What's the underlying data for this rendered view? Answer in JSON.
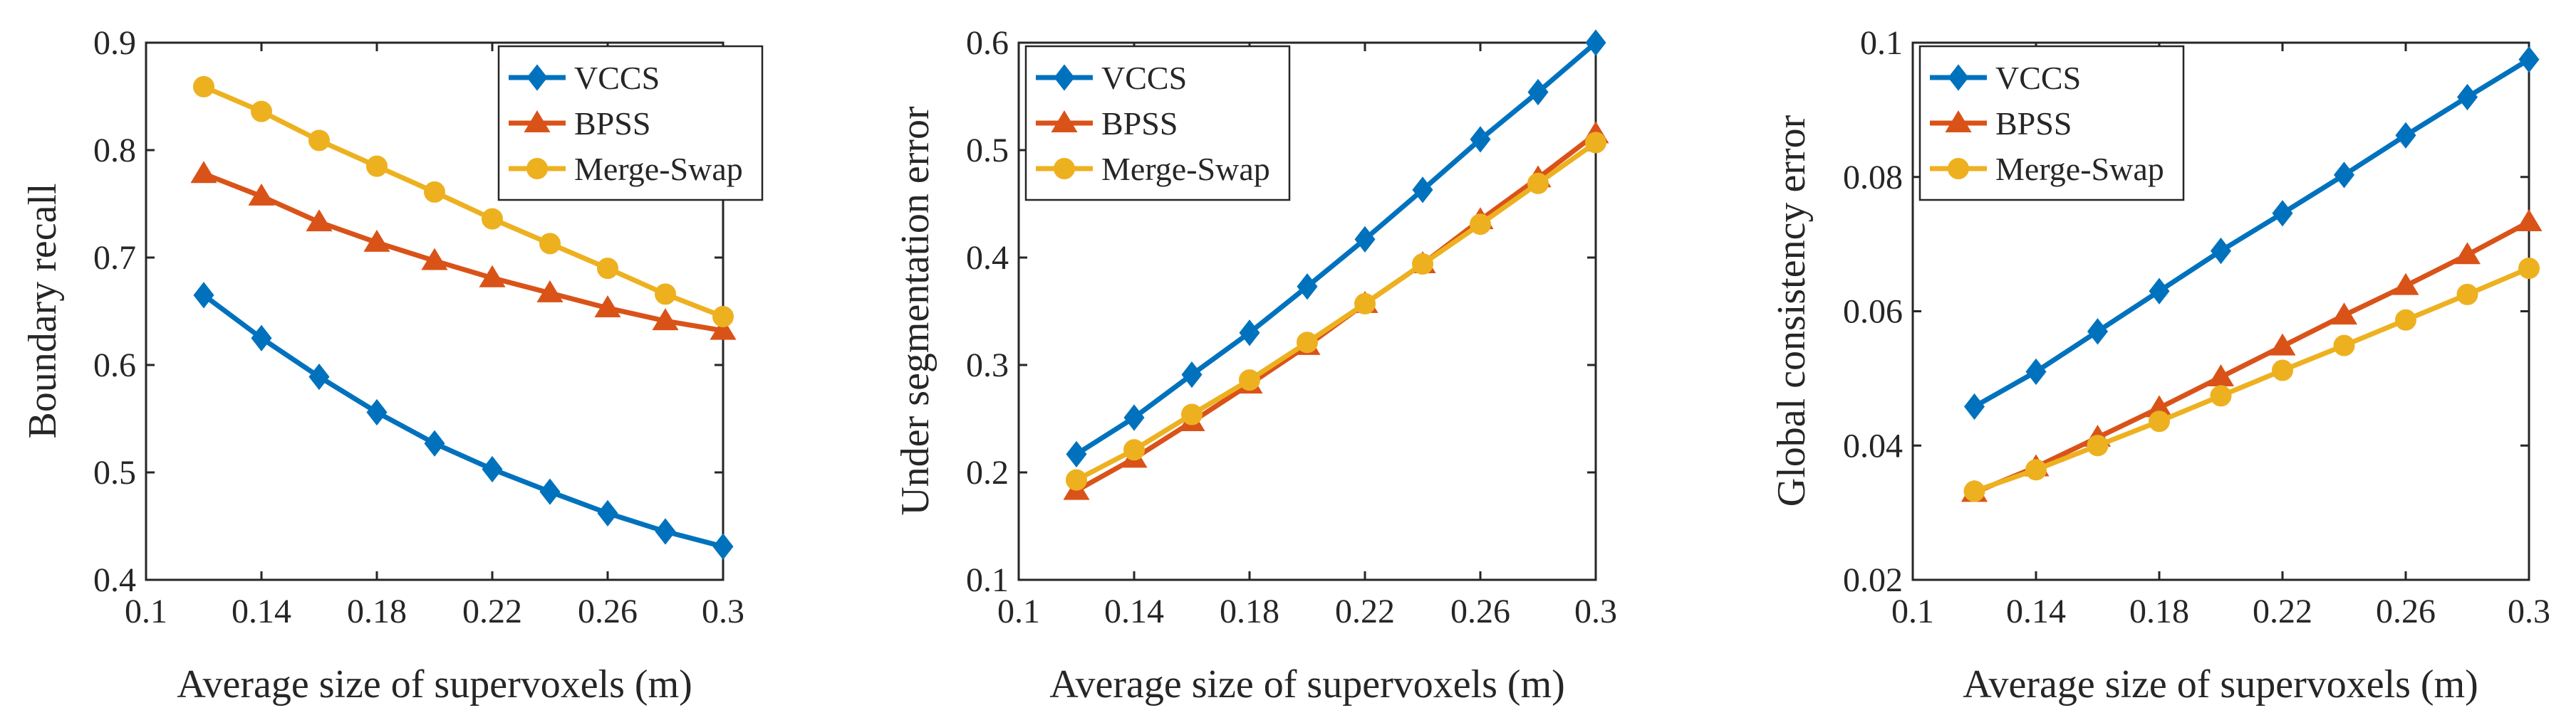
{
  "figure": {
    "colors": {
      "axis": "#262626",
      "background": "#ffffff",
      "vccs": "#0072BD",
      "bpss": "#D95319",
      "merge_swap": "#EDB120"
    }
  },
  "chart_data": [
    {
      "type": "line",
      "title": "",
      "xlabel": "Average size of supervoxels (m)",
      "ylabel": "Boundary recall",
      "xlim": [
        0.1,
        0.3
      ],
      "ylim": [
        0.4,
        0.9
      ],
      "xticks": [
        0.1,
        0.14,
        0.18,
        0.22,
        0.26,
        0.3
      ],
      "xtick_labels": [
        "0.1",
        "0.14",
        "0.18",
        "0.22",
        "0.26",
        "0.3"
      ],
      "yticks": [
        0.4,
        0.5,
        0.6,
        0.7,
        0.8,
        0.9
      ],
      "ytick_labels": [
        "0.4",
        "0.5",
        "0.6",
        "0.7",
        "0.8",
        "0.9"
      ],
      "legend_position": "top-right",
      "x": [
        0.12,
        0.14,
        0.16,
        0.18,
        0.2,
        0.22,
        0.24,
        0.26,
        0.28,
        0.3
      ],
      "series": [
        {
          "name": "VCCS",
          "marker": "diamond",
          "color": "#0072BD",
          "values": [
            0.665,
            0.625,
            0.589,
            0.556,
            0.527,
            0.503,
            0.482,
            0.462,
            0.445,
            0.431
          ]
        },
        {
          "name": "BPSS",
          "marker": "triangle",
          "color": "#D95319",
          "values": [
            0.778,
            0.757,
            0.733,
            0.714,
            0.697,
            0.681,
            0.667,
            0.653,
            0.641,
            0.632
          ]
        },
        {
          "name": "Merge-Swap",
          "marker": "circle",
          "color": "#EDB120",
          "values": [
            0.859,
            0.836,
            0.809,
            0.785,
            0.761,
            0.736,
            0.713,
            0.69,
            0.666,
            0.645
          ]
        }
      ]
    },
    {
      "type": "line",
      "title": "",
      "xlabel": "Average size of supervoxels (m)",
      "ylabel": "Under segmentation error",
      "xlim": [
        0.1,
        0.3
      ],
      "ylim": [
        0.1,
        0.6
      ],
      "xticks": [
        0.1,
        0.14,
        0.18,
        0.22,
        0.26,
        0.3
      ],
      "xtick_labels": [
        "0.1",
        "0.14",
        "0.18",
        "0.22",
        "0.26",
        "0.3"
      ],
      "yticks": [
        0.1,
        0.2,
        0.3,
        0.4,
        0.5,
        0.6
      ],
      "ytick_labels": [
        "0.1",
        "0.2",
        "0.3",
        "0.4",
        "0.5",
        "0.6"
      ],
      "legend_position": "top-left",
      "x": [
        0.12,
        0.14,
        0.16,
        0.18,
        0.2,
        0.22,
        0.24,
        0.26,
        0.28,
        0.3
      ],
      "series": [
        {
          "name": "VCCS",
          "marker": "diamond",
          "color": "#0072BD",
          "values": [
            0.217,
            0.251,
            0.291,
            0.33,
            0.373,
            0.417,
            0.463,
            0.51,
            0.554,
            0.6
          ]
        },
        {
          "name": "BPSS",
          "marker": "triangle",
          "color": "#D95319",
          "values": [
            0.183,
            0.213,
            0.247,
            0.282,
            0.318,
            0.357,
            0.394,
            0.435,
            0.474,
            0.515
          ]
        },
        {
          "name": "Merge-Swap",
          "marker": "circle",
          "color": "#EDB120",
          "values": [
            0.193,
            0.221,
            0.254,
            0.286,
            0.321,
            0.357,
            0.394,
            0.431,
            0.469,
            0.507
          ]
        }
      ]
    },
    {
      "type": "line",
      "title": "",
      "xlabel": "Average size of supervoxels (m)",
      "ylabel": "Global consistency error",
      "xlim": [
        0.1,
        0.3
      ],
      "ylim": [
        0.02,
        0.1
      ],
      "xticks": [
        0.1,
        0.14,
        0.18,
        0.22,
        0.26,
        0.3
      ],
      "xtick_labels": [
        "0.1",
        "0.14",
        "0.18",
        "0.22",
        "0.26",
        "0.3"
      ],
      "yticks": [
        0.02,
        0.04,
        0.06,
        0.08,
        0.1
      ],
      "ytick_labels": [
        "0.02",
        "0.04",
        "0.06",
        "0.08",
        "0.1"
      ],
      "legend_position": "top-left",
      "x": [
        0.12,
        0.14,
        0.16,
        0.18,
        0.2,
        0.22,
        0.24,
        0.26,
        0.28,
        0.3
      ],
      "series": [
        {
          "name": "VCCS",
          "marker": "diamond",
          "color": "#0072BD",
          "values": [
            0.0458,
            0.051,
            0.057,
            0.063,
            0.069,
            0.0746,
            0.0803,
            0.0862,
            0.0919,
            0.0975
          ]
        },
        {
          "name": "BPSS",
          "marker": "triangle",
          "color": "#D95319",
          "values": [
            0.033,
            0.0368,
            0.0412,
            0.0456,
            0.0502,
            0.0548,
            0.0594,
            0.0638,
            0.0684,
            0.0733
          ]
        },
        {
          "name": "Merge-Swap",
          "marker": "circle",
          "color": "#EDB120",
          "values": [
            0.0332,
            0.0364,
            0.04,
            0.0436,
            0.0474,
            0.0512,
            0.0549,
            0.0587,
            0.0625,
            0.0664
          ]
        }
      ]
    }
  ]
}
